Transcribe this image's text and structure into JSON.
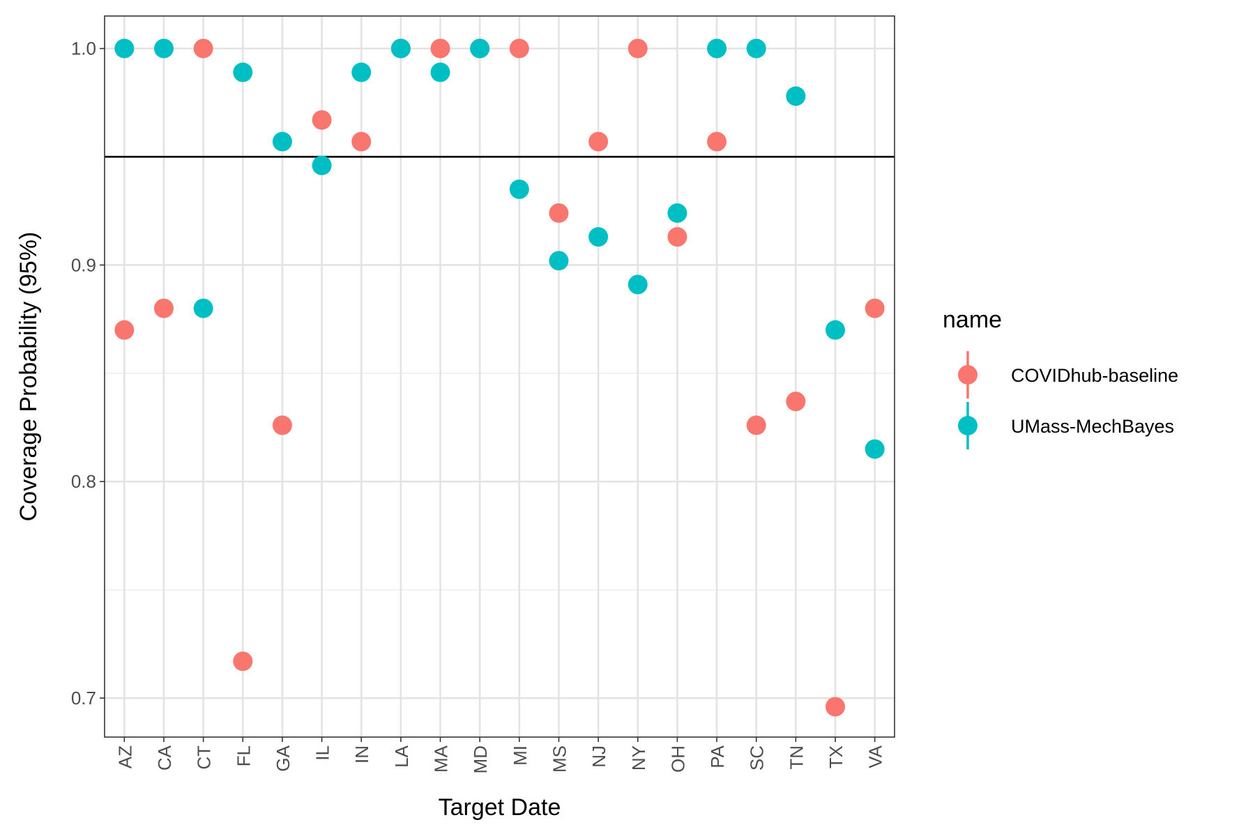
{
  "chart_data": {
    "type": "scatter",
    "title": "",
    "xlabel": "Target Date",
    "ylabel": "Coverage Probability (95%)",
    "categories": [
      "AZ",
      "CA",
      "CT",
      "FL",
      "GA",
      "IL",
      "IN",
      "LA",
      "MA",
      "MD",
      "MI",
      "MS",
      "NJ",
      "NY",
      "OH",
      "PA",
      "SC",
      "TN",
      "TX",
      "VA"
    ],
    "ylim": [
      0.682,
      1.015
    ],
    "yticks": [
      0.7,
      0.8,
      0.9,
      1.0
    ],
    "ytick_labels": [
      "0.7",
      "0.8",
      "0.9",
      "1.0"
    ],
    "reference_line": 0.95,
    "grid": true,
    "legend": {
      "title": "name",
      "placement": "right"
    },
    "series": [
      {
        "name": "COVIDhub-baseline",
        "color": "#F8766D",
        "values": [
          0.87,
          0.88,
          1.0,
          0.717,
          0.826,
          0.967,
          0.957,
          1.0,
          1.0,
          1.0,
          1.0,
          0.924,
          0.957,
          1.0,
          0.913,
          0.957,
          0.826,
          0.837,
          0.696,
          0.88
        ]
      },
      {
        "name": "UMass-MechBayes",
        "color": "#00BFC4",
        "values": [
          1.0,
          1.0,
          0.88,
          0.989,
          0.957,
          0.946,
          0.989,
          1.0,
          0.989,
          1.0,
          0.935,
          0.902,
          0.913,
          0.891,
          0.924,
          1.0,
          1.0,
          0.978,
          0.87,
          0.815
        ]
      }
    ]
  }
}
